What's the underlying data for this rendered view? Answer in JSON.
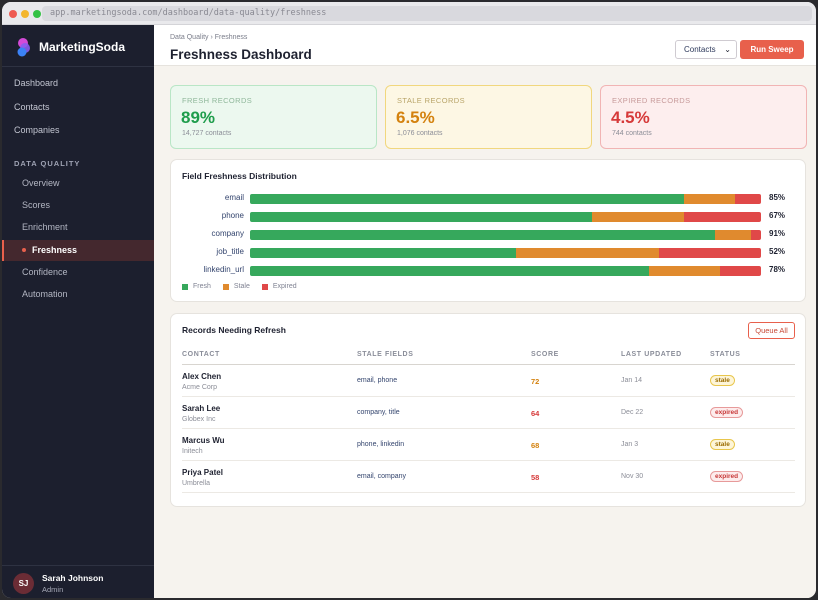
{
  "browser": {
    "url": "app.marketingsoda.com/dashboard/data-quality/freshness"
  },
  "sidebar": {
    "brand": "MarketingSoda",
    "top_items": [
      "Dashboard",
      "Contacts",
      "Companies"
    ],
    "section_title": "DATA QUALITY",
    "sub_items": [
      "Overview",
      "Scores",
      "Enrichment",
      "Freshness",
      "Confidence",
      "Automation"
    ],
    "active_item": "Freshness",
    "user": {
      "initials": "SJ",
      "name": "Sarah Johnson",
      "role": "Admin"
    }
  },
  "header": {
    "breadcrumb": "Data Quality › Freshness",
    "title": "Freshness Dashboard",
    "select_value": "Contacts",
    "run_button": "Run Sweep"
  },
  "stats": [
    {
      "label": "FRESH RECORDS",
      "value": "89%",
      "sub": "14,727 contacts",
      "color": "#1f9d4c"
    },
    {
      "label": "STALE RECORDS",
      "value": "6.5%",
      "sub": "1,076 contacts",
      "color": "#d4820f"
    },
    {
      "label": "EXPIRED RECORDS",
      "value": "4.5%",
      "sub": "744 contacts",
      "color": "#d63a3a"
    }
  ],
  "distribution": {
    "title": "Field Freshness Distribution",
    "legend": [
      "Fresh",
      "Stale",
      "Expired"
    ],
    "colors": {
      "fresh": "#36a85c",
      "stale": "#e08a2e",
      "expired": "#e04848"
    },
    "fields": [
      {
        "name": "email",
        "fresh": 85,
        "stale": 10,
        "expired": 5,
        "label": "85%"
      },
      {
        "name": "phone",
        "fresh": 67,
        "stale": 18,
        "expired": 15,
        "label": "67%"
      },
      {
        "name": "company",
        "fresh": 91,
        "stale": 7,
        "expired": 2,
        "label": "91%"
      },
      {
        "name": "job_title",
        "fresh": 52,
        "stale": 28,
        "expired": 20,
        "label": "52%"
      },
      {
        "name": "linkedin_url",
        "fresh": 78,
        "stale": 14,
        "expired": 8,
        "label": "78%"
      }
    ]
  },
  "records": {
    "title": "Records Needing Refresh",
    "queue_button": "Queue All",
    "columns": [
      "CONTACT",
      "STALE FIELDS",
      "SCORE",
      "LAST UPDATED",
      "STATUS"
    ],
    "rows": [
      {
        "name": "Alex Chen",
        "company": "Acme Corp",
        "fields": "email, phone",
        "score": "72",
        "updated": "Jan 14",
        "status": "stale"
      },
      {
        "name": "Sarah Lee",
        "company": "Globex Inc",
        "fields": "company, title",
        "score": "64",
        "updated": "Dec 22",
        "status": "expired"
      },
      {
        "name": "Marcus Wu",
        "company": "Initech",
        "fields": "phone, linkedin",
        "score": "68",
        "updated": "Jan 3",
        "status": "stale"
      },
      {
        "name": "Priya Patel",
        "company": "Umbrella",
        "fields": "email, company",
        "score": "58",
        "updated": "Nov 30",
        "status": "expired"
      }
    ]
  }
}
